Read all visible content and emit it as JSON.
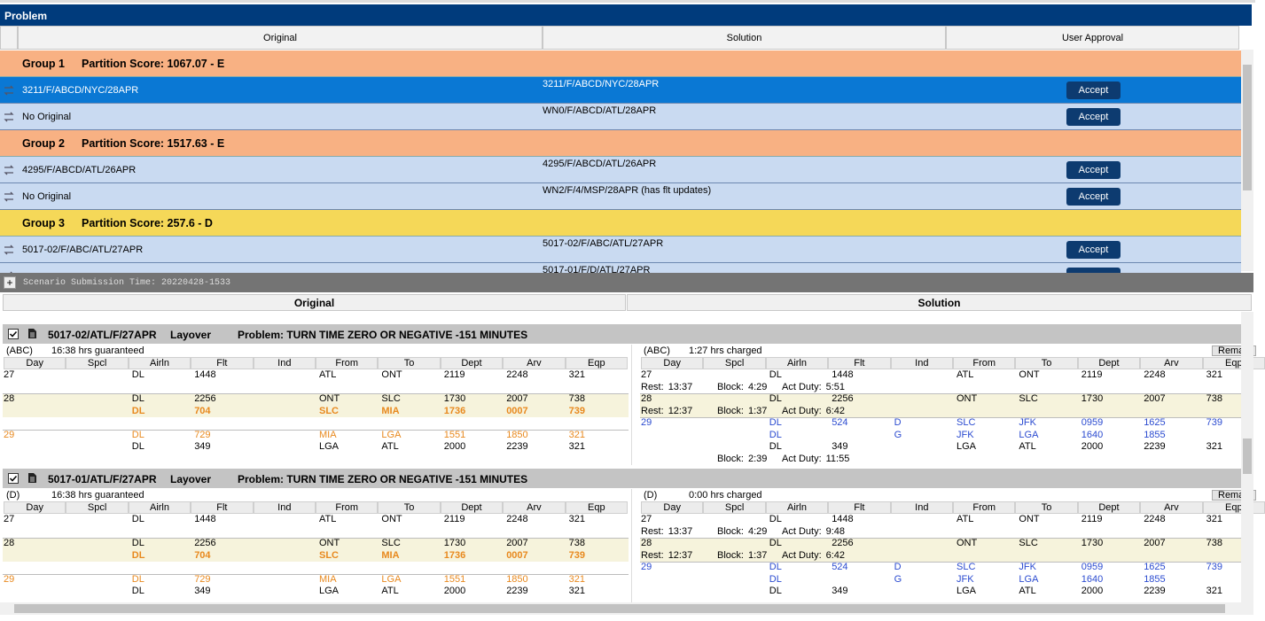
{
  "header": {
    "title": "Problem"
  },
  "approval": {
    "columns": [
      "Original",
      "Solution",
      "User Approval"
    ],
    "groups": [
      {
        "name": "Group 1",
        "score": "Partition Score: 1067.07 - E",
        "color": "#f8b183",
        "rows": [
          {
            "original": "3211/F/ABCD/NYC/28APR",
            "solution": "3211/F/ABCD/NYC/28APR",
            "action": "Accept",
            "selected": true
          },
          {
            "original": "No Original",
            "solution": "WN0/F/ABCD/ATL/28APR",
            "action": "Accept"
          }
        ]
      },
      {
        "name": "Group 2",
        "score": "Partition Score: 1517.63 - E",
        "color": "#f8b183",
        "rows": [
          {
            "original": "4295/F/ABCD/ATL/26APR",
            "solution": "4295/F/ABCD/ATL/26APR",
            "action": "Accept"
          },
          {
            "original": "No Original",
            "solution": "WN2/F/4/MSP/28APR  (has flt updates)",
            "action": "Accept"
          }
        ]
      },
      {
        "name": "Group 3",
        "score": "Partition Score: 257.6 - D",
        "color": "#f5d858",
        "rows": [
          {
            "original": "5017-02/F/ABC/ATL/27APR",
            "solution": "5017-02/F/ABC/ATL/27APR",
            "action": "Accept"
          },
          {
            "solution": "5017-01/F/D/ATL/27APR"
          }
        ]
      }
    ]
  },
  "scenario": {
    "toggle": "+",
    "label": "Scenario Submission Time: 20220428-1533"
  },
  "compare": {
    "columns": [
      "Original",
      "Solution"
    ],
    "leg_columns": [
      "Day",
      "Spcl",
      "Airln",
      "Flt",
      "Ind",
      "From",
      "To",
      "Dept",
      "Arv",
      "Eqp"
    ],
    "note_labels": {
      "rest": "Rest:",
      "block": "Block:",
      "act_duty": "Act Duty:"
    },
    "remark": "Rema",
    "sections": [
      {
        "title": "5017-02/ATL/F/27APR",
        "kind": "Layover",
        "problem": "Problem: TURN TIME ZERO OR NEGATIVE -151 MINUTES",
        "original": {
          "code": "(ABC)",
          "summary": "16:38 hrs guaranteed",
          "days": [
            {
              "day": "27",
              "legs": [
                {
                  "airln": "DL",
                  "flt": "1448",
                  "from": "ATL",
                  "to": "ONT",
                  "dept": "2119",
                  "arv": "2248",
                  "eqp": "321"
                }
              ]
            },
            {
              "day": "28",
              "legs": [
                {
                  "airln": "DL",
                  "flt": "2256",
                  "from": "ONT",
                  "to": "SLC",
                  "dept": "1730",
                  "arv": "2007",
                  "eqp": "738"
                },
                {
                  "airln": "DL",
                  "flt": "704",
                  "from": "SLC",
                  "to": "MIA",
                  "dept": "1736",
                  "arv": "0007",
                  "eqp": "739",
                  "color": "#e8891e",
                  "bold": true
                }
              ]
            },
            {
              "day": "29",
              "legs": [
                {
                  "airln": "DL",
                  "flt": "729",
                  "from": "MIA",
                  "to": "LGA",
                  "dept": "1551",
                  "arv": "1850",
                  "eqp": "321",
                  "color": "#e8891e"
                },
                {
                  "airln": "DL",
                  "flt": "349",
                  "from": "LGA",
                  "to": "ATL",
                  "dept": "2000",
                  "arv": "2239",
                  "eqp": "321"
                }
              ]
            }
          ]
        },
        "solution": {
          "code": "(ABC)",
          "summary": "1:27 hrs charged",
          "days": [
            {
              "day": "27",
              "legs": [
                {
                  "airln": "DL",
                  "flt": "1448",
                  "from": "ATL",
                  "to": "ONT",
                  "dept": "2119",
                  "arv": "2248",
                  "eqp": "321"
                }
              ],
              "notes": {
                "rest": "13:37",
                "block": "4:29",
                "act_duty": "5:51"
              }
            },
            {
              "day": "28",
              "legs": [
                {
                  "airln": "DL",
                  "flt": "2256",
                  "from": "ONT",
                  "to": "SLC",
                  "dept": "1730",
                  "arv": "2007",
                  "eqp": "738"
                }
              ],
              "notes": {
                "rest": "12:37",
                "block": "1:37",
                "act_duty": "6:42"
              }
            },
            {
              "day": "29",
              "legs": [
                {
                  "airln": "DL",
                  "flt": "524",
                  "ind": "D",
                  "from": "SLC",
                  "to": "JFK",
                  "dept": "0959",
                  "arv": "1625",
                  "eqp": "739",
                  "color": "#2b4bd0"
                },
                {
                  "airln": "DL",
                  "ind": "G",
                  "from": "JFK",
                  "to": "LGA",
                  "dept": "1640",
                  "arv": "1855",
                  "color": "#2b4bd0"
                },
                {
                  "airln": "DL",
                  "flt": "349",
                  "from": "LGA",
                  "to": "ATL",
                  "dept": "2000",
                  "arv": "2239",
                  "eqp": "321"
                }
              ],
              "notes": {
                "block": "2:39",
                "act_duty": "11:55"
              }
            }
          ]
        }
      },
      {
        "title": "5017-01/ATL/F/27APR",
        "kind": "Layover",
        "problem": "Problem: TURN TIME ZERO OR NEGATIVE -151 MINUTES",
        "original": {
          "code": "(D)",
          "summary": "16:38 hrs guaranteed",
          "days": [
            {
              "day": "27",
              "legs": [
                {
                  "airln": "DL",
                  "flt": "1448",
                  "from": "ATL",
                  "to": "ONT",
                  "dept": "2119",
                  "arv": "2248",
                  "eqp": "321"
                }
              ]
            },
            {
              "day": "28",
              "legs": [
                {
                  "airln": "DL",
                  "flt": "2256",
                  "from": "ONT",
                  "to": "SLC",
                  "dept": "1730",
                  "arv": "2007",
                  "eqp": "738"
                },
                {
                  "airln": "DL",
                  "flt": "704",
                  "from": "SLC",
                  "to": "MIA",
                  "dept": "1736",
                  "arv": "0007",
                  "eqp": "739",
                  "color": "#e8891e",
                  "bold": true
                }
              ]
            },
            {
              "day": "29",
              "legs": [
                {
                  "airln": "DL",
                  "flt": "729",
                  "from": "MIA",
                  "to": "LGA",
                  "dept": "1551",
                  "arv": "1850",
                  "eqp": "321",
                  "color": "#e8891e"
                },
                {
                  "airln": "DL",
                  "flt": "349",
                  "from": "LGA",
                  "to": "ATL",
                  "dept": "2000",
                  "arv": "2239",
                  "eqp": "321"
                }
              ]
            }
          ]
        },
        "solution": {
          "code": "(D)",
          "summary": "0:00 hrs charged",
          "days": [
            {
              "day": "27",
              "legs": [
                {
                  "airln": "DL",
                  "flt": "1448",
                  "from": "ATL",
                  "to": "ONT",
                  "dept": "2119",
                  "arv": "2248",
                  "eqp": "321"
                }
              ],
              "notes": {
                "rest": "13:37",
                "block": "4:29",
                "act_duty": "9:48"
              }
            },
            {
              "day": "28",
              "legs": [
                {
                  "airln": "DL",
                  "flt": "2256",
                  "from": "ONT",
                  "to": "SLC",
                  "dept": "1730",
                  "arv": "2007",
                  "eqp": "738"
                }
              ],
              "notes": {
                "rest": "12:37",
                "block": "1:37",
                "act_duty": "6:42"
              }
            },
            {
              "day": "29",
              "legs": [
                {
                  "airln": "DL",
                  "flt": "524",
                  "ind": "D",
                  "from": "SLC",
                  "to": "JFK",
                  "dept": "0959",
                  "arv": "1625",
                  "eqp": "739",
                  "color": "#2b4bd0"
                },
                {
                  "airln": "DL",
                  "ind": "G",
                  "from": "JFK",
                  "to": "LGA",
                  "dept": "1640",
                  "arv": "1855",
                  "color": "#2b4bd0"
                },
                {
                  "airln": "DL",
                  "flt": "349",
                  "from": "LGA",
                  "to": "ATL",
                  "dept": "2000",
                  "arv": "2239",
                  "eqp": "321"
                }
              ]
            }
          ]
        }
      }
    ]
  }
}
